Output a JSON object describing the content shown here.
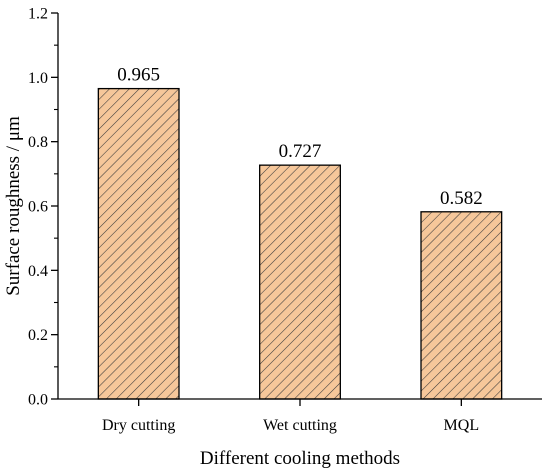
{
  "chart_data": {
    "type": "bar",
    "categories": [
      "Dry cutting",
      "Wet cutting",
      "MQL"
    ],
    "values": [
      0.965,
      0.727,
      0.582
    ],
    "value_labels": [
      "0.965",
      "0.727",
      "0.582"
    ],
    "xlabel": "Different cooling methods",
    "ylabel": "Surface roughness / μm",
    "ylim": [
      0,
      1.2
    ],
    "yticks": [
      "0.0",
      "0.2",
      "0.4",
      "0.6",
      "0.8",
      "1.0",
      "1.2"
    ],
    "grid": false,
    "legend": "none",
    "bar_fill": "#f6c79a",
    "hatch_color": "#3a3a3a",
    "bar_edge": "#000000",
    "hatch": "diagonal"
  }
}
